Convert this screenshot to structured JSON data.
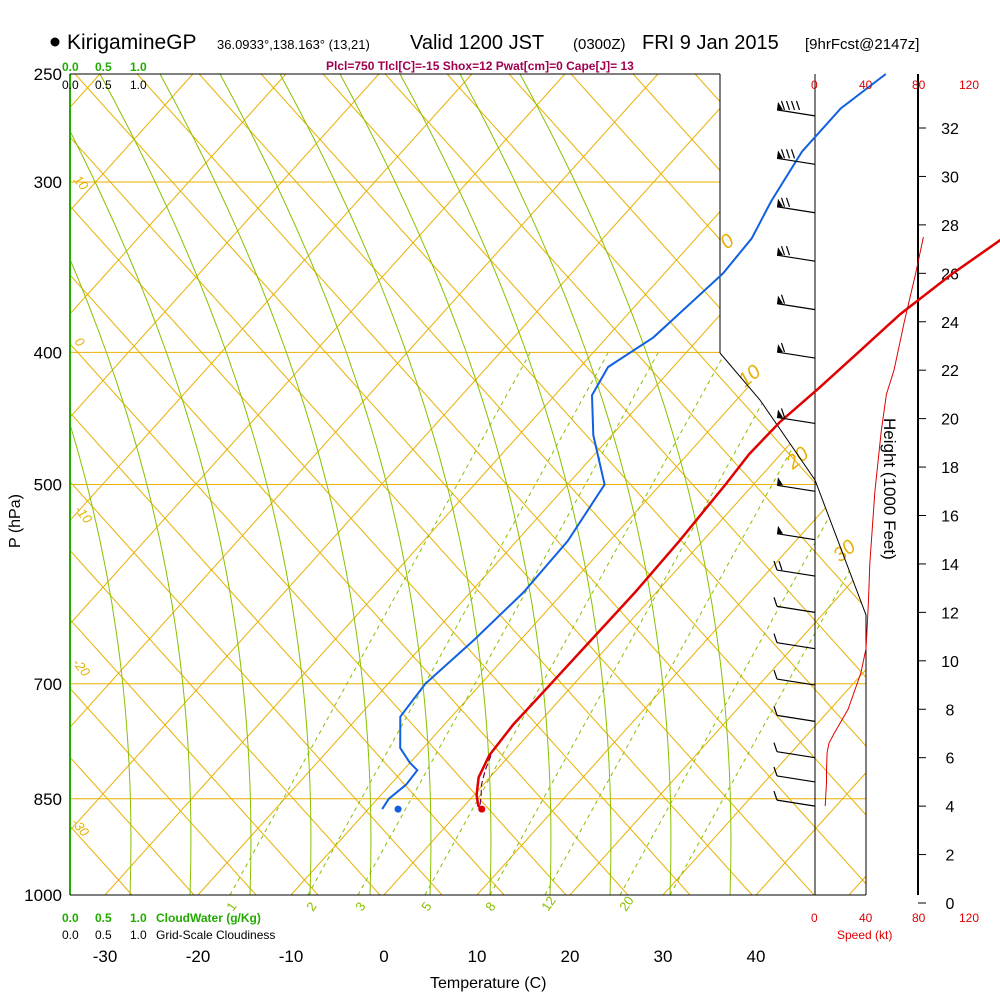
{
  "header": {
    "station": "KirigamineGP",
    "coords": "36.0933°,138.163° (13,21)",
    "valid": "Valid 1200 JST",
    "utc": "(0300Z)",
    "date": "FRI 9 Jan 2015",
    "forecast": "[9hrFcst@2147z]",
    "indices": "Plcl=750 Tlcl[C]=-15 Shox=12 Pwat[cm]=0 Cape[J]= 13"
  },
  "scale_labels": {
    "cloud_top": [
      "0.0",
      "0.5",
      "1.0"
    ],
    "cover_top": [
      "0.0",
      "0.5",
      "1.0"
    ],
    "cloud_bottom": [
      "0.0",
      "0.5",
      "1.0"
    ],
    "cloud_water_label": "CloudWater (g/Kg)",
    "cover_bottom": [
      "0.0",
      "0.5",
      "1.0"
    ],
    "cover_label": "Grid-Scale Cloudiness",
    "speed_top": [
      "0",
      "40",
      "80",
      "120"
    ],
    "speed_bottom": [
      "0",
      "40",
      "80",
      "120"
    ],
    "speed_label": "Speed (kt)"
  },
  "colors": {
    "temperature": "#e00000",
    "dewpoint": "#1060e0",
    "isotherm": "#e8b000",
    "dry_adiabat": "#e8b000",
    "moist_adiabat": "#88c000",
    "mixing_ratio": "#88c000",
    "parcel": "#800040",
    "cloud_axis": "#22aa00",
    "speed_axis": "#e00000"
  },
  "chart_data": {
    "type": "line",
    "title": "",
    "xlabel": "Temperature (C)",
    "ylabel": "P (hPa)",
    "xlim": [
      -34,
      36
    ],
    "ylim": [
      1000,
      250
    ],
    "x_ticks": [
      "-30",
      "-20",
      "-10",
      "0",
      "10",
      "20",
      "30",
      "40"
    ],
    "y_ticks": [
      "250",
      "300",
      "400",
      "500",
      "700",
      "850",
      "1000"
    ],
    "series": [
      {
        "key": "temperature",
        "x": [
          8.0,
          6.5,
          5.3,
          3.5,
          1.0,
          -0.7,
          -1.5,
          -2.3,
          -3.2,
          -3.4,
          -3.0,
          -2.5,
          -2.3,
          -2.4,
          -2.5,
          -2.6,
          -2.2,
          -1.2,
          0.3,
          1.5,
          2.2
        ],
        "y": [
          250,
          275,
          300,
          325,
          350,
          375,
          400,
          425,
          450,
          475,
          500,
          550,
          600,
          650,
          700,
          750,
          790,
          820,
          845,
          860,
          865
        ]
      },
      {
        "key": "dewpoint",
        "x": [
          -25.5,
          -27.0,
          -27.0,
          -25.5,
          -24.0,
          -23.7,
          -25.0,
          -27.0,
          -26.0,
          -22.0,
          -16.0,
          -14.5,
          -14.3,
          -15.0,
          -16.0,
          -15.5,
          -12.5,
          -10.0,
          -8.5,
          -8.3,
          -8.8,
          -8.5
        ],
        "y": [
          250,
          265,
          285,
          310,
          330,
          350,
          390,
          410,
          430,
          460,
          500,
          550,
          600,
          650,
          700,
          740,
          780,
          800,
          810,
          830,
          850,
          865
        ]
      },
      {
        "key": "parcel",
        "x": [
          -2.0,
          -1.2,
          -0.2,
          0.8,
          1.5,
          2.0
        ],
        "y": [
          790,
          810,
          830,
          845,
          857,
          865
        ]
      }
    ],
    "surface_points": [
      {
        "x": 2.2,
        "y": 865
      },
      {
        "x": -6.8,
        "y": 865
      }
    ],
    "isotherm_labels": [
      "0",
      "10",
      "20",
      "30",
      "-10",
      "-20",
      "-30"
    ],
    "dry_adiabat_labels": [
      "10",
      "0",
      "-10",
      "-20",
      "-30"
    ],
    "mixing_ratio_labels": [
      "1",
      "2",
      "3",
      "5",
      "8",
      "12",
      "20"
    ],
    "height_axis": {
      "label": "Height (1000 Feet)",
      "ticks": [
        0,
        2,
        4,
        6,
        8,
        10,
        12,
        14,
        16,
        18,
        20,
        22,
        24,
        26,
        28,
        30,
        32
      ]
    },
    "wind_speed_profile": {
      "unit": "kt",
      "height_kft": [
        4.0,
        5.0,
        5.5,
        6.2,
        6.6,
        7.0,
        8.0,
        9.5,
        10.5,
        11.5,
        12.5,
        14.0,
        17.0,
        19.5,
        21.0,
        22.0,
        24.0,
        26.0,
        27.5
      ],
      "speed": [
        8,
        9,
        9,
        9.5,
        11,
        15,
        26,
        36,
        40,
        41,
        42,
        43,
        47,
        52,
        56,
        62,
        70,
        79,
        85
      ]
    },
    "wind_barbs": {
      "description_only": false,
      "height_kft": [
        32.5,
        30.5,
        28.5,
        26.5,
        24.5,
        22.5,
        19.8,
        17.0,
        15.0,
        13.5,
        12.0,
        10.5,
        9.0,
        7.5,
        6.0,
        5.0,
        4.0
      ],
      "speed": [
        90,
        80,
        75,
        70,
        65,
        60,
        60,
        55,
        50,
        20,
        15,
        15,
        15,
        15,
        10,
        10,
        10
      ]
    }
  }
}
